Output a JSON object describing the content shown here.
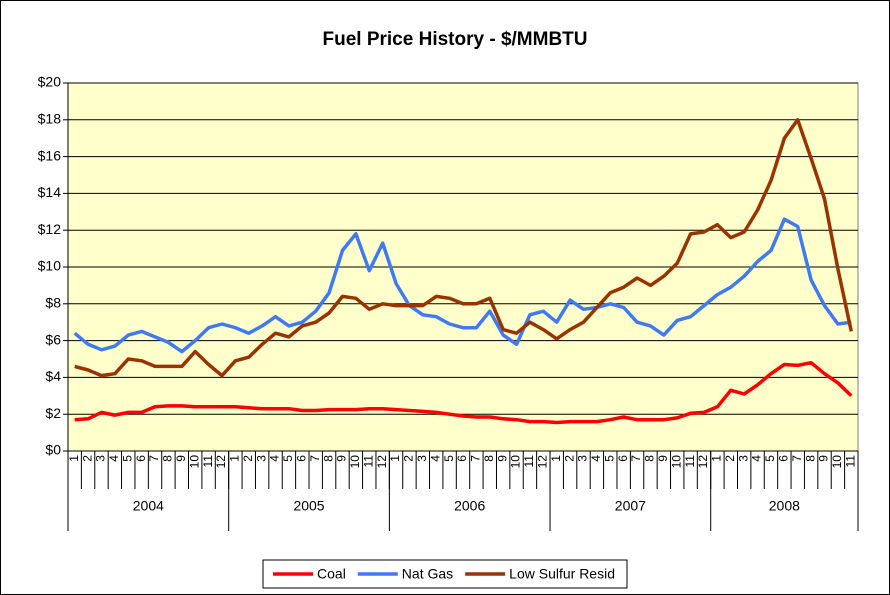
{
  "chart_data": {
    "type": "line",
    "title": "Fuel Price History - $/MMBTU",
    "category_groups": [
      {
        "label": "2004",
        "categories": [
          "1",
          "2",
          "3",
          "4",
          "5",
          "6",
          "7",
          "8",
          "9",
          "10",
          "11",
          "12"
        ]
      },
      {
        "label": "2005",
        "categories": [
          "1",
          "2",
          "3",
          "4",
          "5",
          "6",
          "7",
          "8",
          "9",
          "10",
          "11",
          "12"
        ]
      },
      {
        "label": "2006",
        "categories": [
          "1",
          "2",
          "3",
          "4",
          "5",
          "6",
          "7",
          "8",
          "9",
          "10",
          "11",
          "12"
        ]
      },
      {
        "label": "2007",
        "categories": [
          "1",
          "2",
          "3",
          "4",
          "5",
          "6",
          "7",
          "8",
          "9",
          "10",
          "11",
          "12"
        ]
      },
      {
        "label": "2008",
        "categories": [
          "1",
          "2",
          "3",
          "4",
          "5",
          "6",
          "7",
          "8",
          "9",
          "10",
          "11"
        ]
      }
    ],
    "series": [
      {
        "name": "Coal",
        "color": "#ff0000",
        "values": [
          1.7,
          1.75,
          2.1,
          1.95,
          2.1,
          2.1,
          2.4,
          2.45,
          2.45,
          2.4,
          2.4,
          2.4,
          2.4,
          2.35,
          2.3,
          2.3,
          2.3,
          2.2,
          2.2,
          2.25,
          2.25,
          2.25,
          2.3,
          2.3,
          2.25,
          2.2,
          2.15,
          2.1,
          2.0,
          1.9,
          1.85,
          1.85,
          1.75,
          1.7,
          1.6,
          1.6,
          1.55,
          1.6,
          1.6,
          1.6,
          1.7,
          1.85,
          1.7,
          1.7,
          1.7,
          1.8,
          2.05,
          2.1,
          2.4,
          3.3,
          3.1,
          3.6,
          4.2,
          4.7,
          4.65,
          4.8,
          4.2,
          3.7,
          3.0
        ]
      },
      {
        "name": "Nat Gas",
        "color": "#3f7af2",
        "values": [
          6.4,
          5.8,
          5.5,
          5.7,
          6.3,
          6.5,
          6.2,
          5.9,
          5.4,
          6.0,
          6.7,
          6.9,
          6.7,
          6.4,
          6.8,
          7.3,
          6.8,
          7.0,
          7.6,
          8.6,
          10.9,
          11.8,
          9.8,
          11.3,
          9.1,
          7.9,
          7.4,
          7.3,
          6.9,
          6.7,
          6.7,
          7.6,
          6.3,
          5.8,
          7.4,
          7.6,
          7.0,
          8.2,
          7.7,
          7.8,
          8.0,
          7.8,
          7.0,
          6.8,
          6.3,
          7.1,
          7.3,
          7.9,
          8.5,
          8.9,
          9.5,
          10.3,
          10.9,
          12.6,
          12.2,
          9.3,
          7.9,
          6.9,
          7.0
        ]
      },
      {
        "name": "Low Sulfur Resid",
        "color": "#993300",
        "values": [
          4.6,
          4.4,
          4.1,
          4.2,
          5.0,
          4.9,
          4.6,
          4.6,
          4.6,
          5.4,
          4.7,
          4.1,
          4.9,
          5.1,
          5.8,
          6.4,
          6.2,
          6.8,
          7.0,
          7.5,
          8.4,
          8.3,
          7.7,
          8.0,
          7.9,
          7.9,
          7.9,
          8.4,
          8.3,
          8.0,
          8.0,
          8.3,
          6.6,
          6.4,
          7.0,
          6.6,
          6.1,
          6.6,
          7.0,
          7.8,
          8.6,
          8.9,
          9.4,
          9.0,
          9.5,
          10.2,
          11.8,
          11.9,
          12.3,
          11.6,
          11.9,
          13.1,
          14.7,
          17.0,
          18.0,
          15.9,
          13.7,
          9.9,
          6.5
        ]
      }
    ],
    "ylim": [
      0,
      20
    ],
    "yticks": [
      {
        "value": 0,
        "label": "$0"
      },
      {
        "value": 2,
        "label": "$2"
      },
      {
        "value": 4,
        "label": "$4"
      },
      {
        "value": 6,
        "label": "$6"
      },
      {
        "value": 8,
        "label": "$8"
      },
      {
        "value": 10,
        "label": "$10"
      },
      {
        "value": 12,
        "label": "$12"
      },
      {
        "value": 14,
        "label": "$14"
      },
      {
        "value": 16,
        "label": "$16"
      },
      {
        "value": 18,
        "label": "$18"
      },
      {
        "value": 20,
        "label": "$20"
      }
    ],
    "grid": true,
    "legend": "bottom",
    "plot_background": "#ffffcc"
  }
}
